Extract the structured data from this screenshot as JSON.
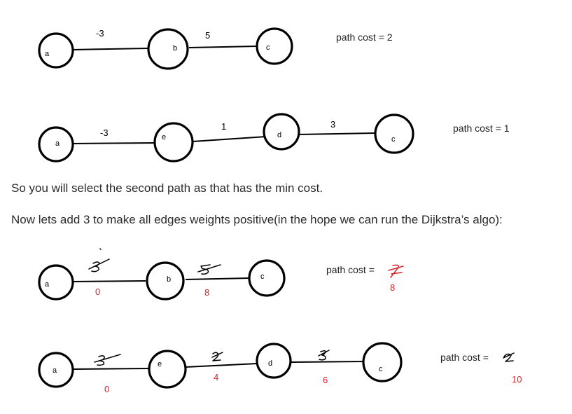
{
  "graph1": {
    "nodes": [
      "a",
      "b",
      "c"
    ],
    "weights": [
      "-3",
      "5"
    ],
    "cost_text": "path cost = 2"
  },
  "graph2": {
    "nodes": [
      "a",
      "e",
      "d",
      "c"
    ],
    "weights": [
      "-3",
      "1",
      "3"
    ],
    "cost_text": "path cost  = 1"
  },
  "text": {
    "line1": "So you will select the second path as that has the min cost.",
    "line2": "Now lets add 3 to make all edges weights positive(in the hope we can run the Dijkstra’s algo):"
  },
  "graph3": {
    "nodes": [
      "a",
      "b",
      "c"
    ],
    "new_weights": [
      "0",
      "8"
    ],
    "cost_text": "path cost =",
    "new_cost": "8"
  },
  "graph4": {
    "nodes": [
      "a",
      "e",
      "d",
      "c"
    ],
    "new_weights": [
      "0",
      "4",
      "6"
    ],
    "cost_text": "path cost  =",
    "new_cost": "10"
  },
  "colors": {
    "annotation": "#d9232d",
    "ink": "#000000"
  }
}
